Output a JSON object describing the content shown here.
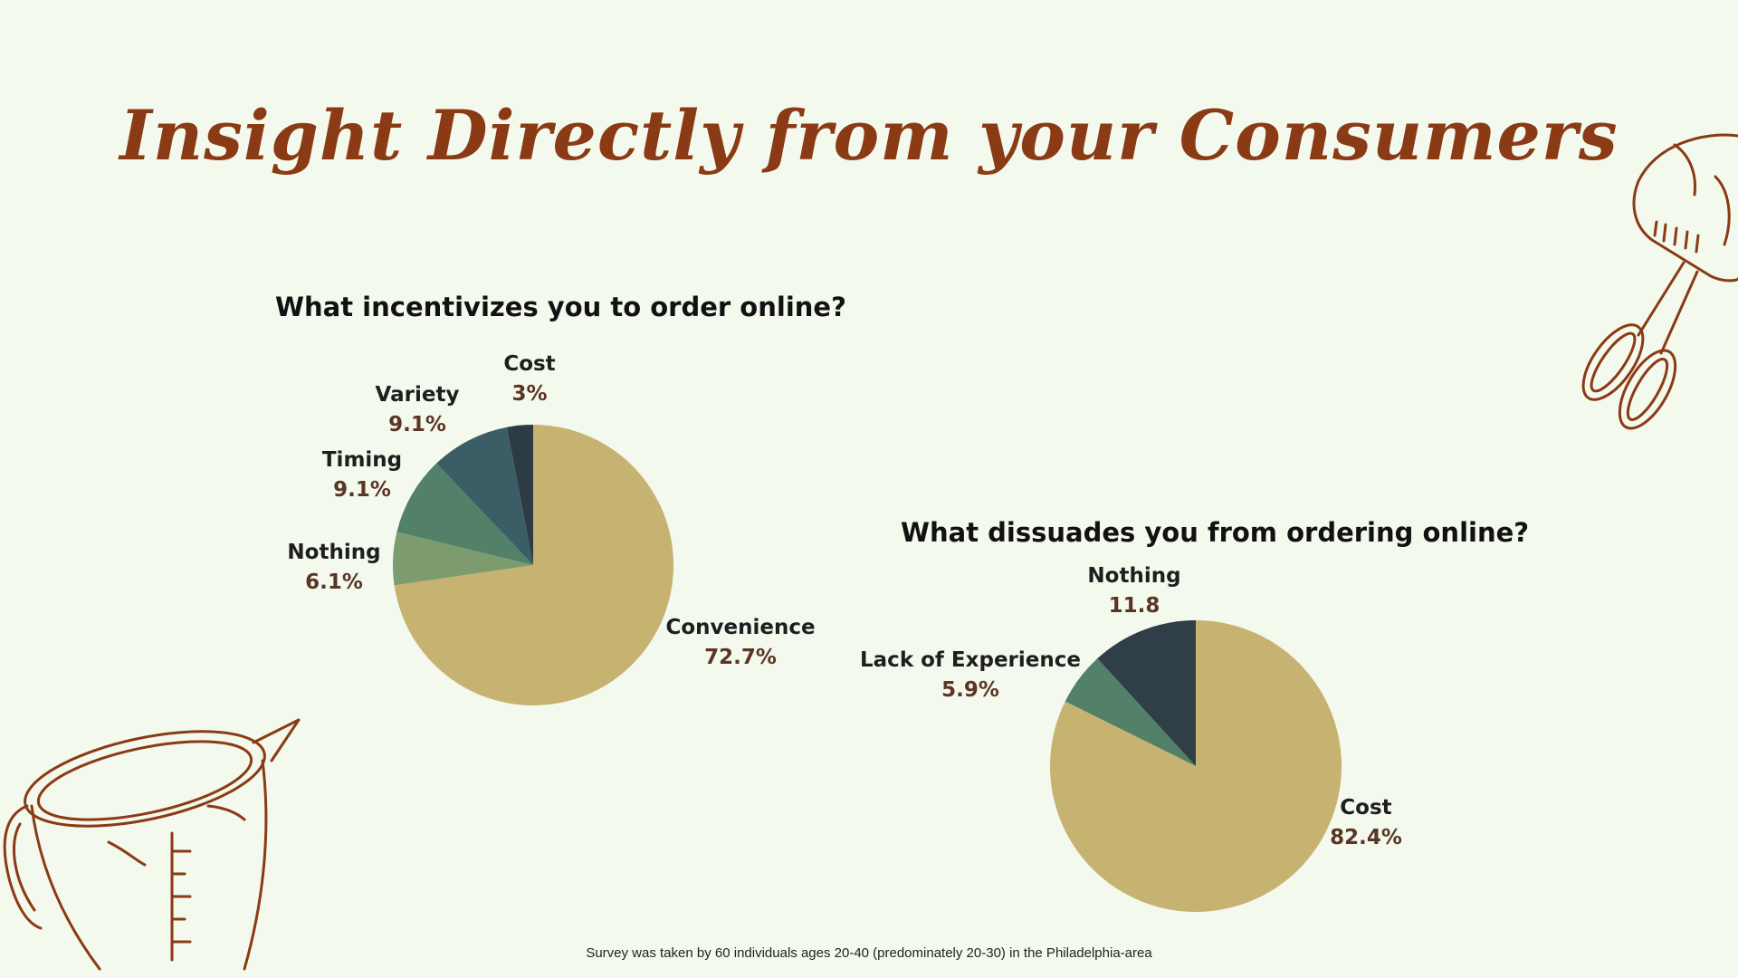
{
  "title": "Insight Directly from your Consumers",
  "footnote": "Survey was taken by 60 individuals ages 20-40 (predominately 20-30) in the Philadelphia-area",
  "chart_data": [
    {
      "type": "pie",
      "title": "What incentivizes you to order online?",
      "slices": [
        {
          "label": "Convenience",
          "value_label": "72.7%",
          "value": 72.7,
          "color": "#c6b271"
        },
        {
          "label": "Nothing",
          "value_label": "6.1%",
          "value": 6.1,
          "color": "#7c9b6e"
        },
        {
          "label": "Timing",
          "value_label": "9.1%",
          "value": 9.1,
          "color": "#528069"
        },
        {
          "label": "Variety",
          "value_label": "9.1%",
          "value": 9.1,
          "color": "#3b5e66"
        },
        {
          "label": "Cost",
          "value_label": "3%",
          "value": 3.0,
          "color": "#2d3b44"
        }
      ]
    },
    {
      "type": "pie",
      "title": "What dissuades you from ordering online?",
      "slices": [
        {
          "label": "Cost",
          "value_label": "82.4%",
          "value": 82.4,
          "color": "#c6b271"
        },
        {
          "label": "Lack of Experience",
          "value_label": "5.9%",
          "value": 5.9,
          "color": "#528069"
        },
        {
          "label": "Nothing",
          "value_label": "11.8",
          "value": 11.8,
          "color": "#2f3e47"
        }
      ]
    }
  ],
  "decorations": {
    "left": "measuring-cup-icon",
    "right": "hand-mixer-icon",
    "color": "#8a3a14"
  }
}
